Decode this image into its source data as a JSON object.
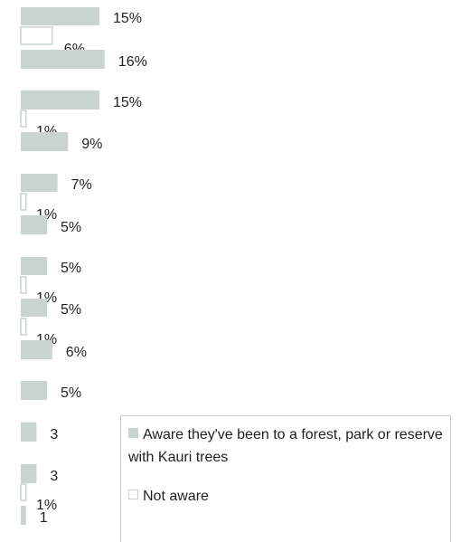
{
  "chart_data": {
    "type": "bar",
    "orientation": "horizontal",
    "colors": {
      "aware": "#c9d3cf",
      "not_aware_fill": "#ffffff",
      "not_aware_stroke": "#c9d3cf"
    },
    "series": [
      {
        "name": "Aware they've been to a forest, park or reserve with Kauri trees",
        "key": "aware"
      },
      {
        "name": "Not aware",
        "key": "not_aware"
      }
    ],
    "bars": [
      {
        "series": "aware",
        "value": 15,
        "label": "15%"
      },
      {
        "series": "not_aware",
        "value": 6,
        "label": "6%"
      },
      {
        "series": "overall",
        "value": 16,
        "label": "16%"
      },
      {
        "series": "aware",
        "value": 15,
        "label": "15%"
      },
      {
        "series": "not_aware",
        "value": 1,
        "label": "1%"
      },
      {
        "series": "overall",
        "value": 9,
        "label": "9%"
      },
      {
        "series": "aware",
        "value": 7,
        "label": "7%"
      },
      {
        "series": "not_aware",
        "value": 1,
        "label": "1%"
      },
      {
        "series": "overall",
        "value": 5,
        "label": "5%"
      },
      {
        "series": "aware",
        "value": 5,
        "label": "5%"
      },
      {
        "series": "not_aware",
        "value": 1,
        "label": "1%"
      },
      {
        "series": "aware",
        "value": 5,
        "label": "5%"
      },
      {
        "series": "not_aware",
        "value": 1,
        "label": "1%"
      },
      {
        "series": "overall",
        "value": 6,
        "label": "6%"
      },
      {
        "series": "overall",
        "value": 5,
        "label": "5%"
      },
      {
        "series": "overall",
        "value": 3,
        "label": "3"
      },
      {
        "series": "aware",
        "value": 3,
        "label": "3"
      },
      {
        "series": "not_aware",
        "value": 1,
        "label": "1%"
      },
      {
        "series": "overall",
        "value": 1,
        "label": "1"
      }
    ]
  },
  "legend": {
    "aware_label": "Aware they've been to a forest, park or reserve with Kauri trees",
    "not_aware_label": "Not aware"
  }
}
